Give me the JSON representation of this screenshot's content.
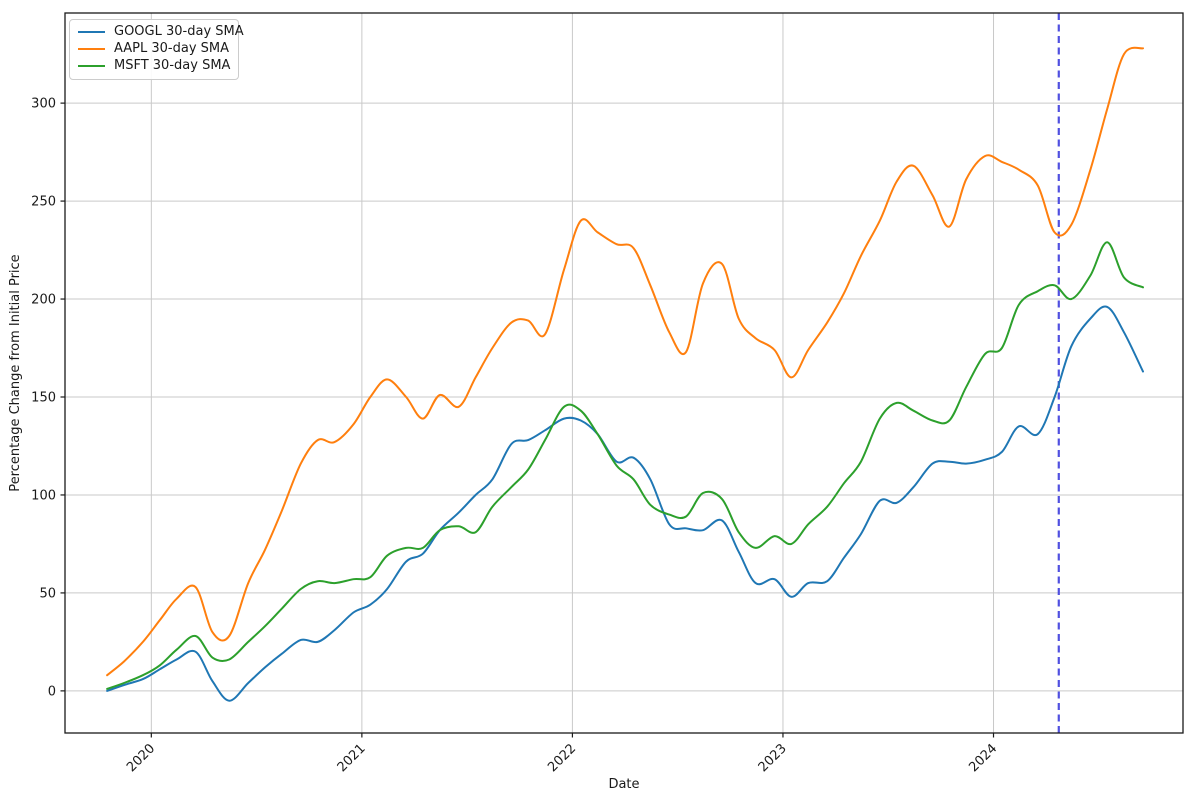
{
  "figure": {
    "background": "#ffffff",
    "axes": {
      "xlabel": "Date",
      "ylabel": "Percentage Change from Initial Price",
      "spine_color": "#1a1a1a",
      "grid_color": "#c9c9c9",
      "tick_label_color": "#1a1a1a"
    }
  },
  "legend": {
    "position": "upper left"
  },
  "chart_data": {
    "type": "line",
    "title": "",
    "xlabel": "Date",
    "ylabel": "Percentage Change from Initial Price",
    "grid": true,
    "legend_position": "upper left",
    "x_ticks": [
      2020,
      2021,
      2022,
      2023,
      2024
    ],
    "x_tick_labels": [
      "2020",
      "2021",
      "2022",
      "2023",
      "2024"
    ],
    "y_ticks": [
      0,
      50,
      100,
      150,
      200,
      250,
      300
    ],
    "xlim": [
      2019.59,
      2024.9
    ],
    "ylim": [
      -21.5,
      346
    ],
    "x": [
      2019.79,
      2019.87,
      2019.96,
      2020.04,
      2020.12,
      2020.21,
      2020.29,
      2020.37,
      2020.46,
      2020.54,
      2020.62,
      2020.71,
      2020.79,
      2020.87,
      2020.96,
      2021.04,
      2021.12,
      2021.21,
      2021.29,
      2021.37,
      2021.46,
      2021.54,
      2021.62,
      2021.71,
      2021.79,
      2021.87,
      2021.96,
      2022.04,
      2022.12,
      2022.21,
      2022.29,
      2022.37,
      2022.46,
      2022.54,
      2022.62,
      2022.71,
      2022.79,
      2022.87,
      2022.96,
      2023.04,
      2023.12,
      2023.21,
      2023.29,
      2023.37,
      2023.46,
      2023.54,
      2023.62,
      2023.71,
      2023.79,
      2023.87,
      2023.96,
      2024.04,
      2024.12,
      2024.21,
      2024.29,
      2024.37,
      2024.46,
      2024.54,
      2024.62,
      2024.71
    ],
    "series": [
      {
        "name": "GOOGL 30-day SMA",
        "color": "#1f77b4",
        "values": [
          0,
          3,
          6,
          11,
          16,
          20,
          5,
          -5,
          4,
          12,
          19,
          26,
          25,
          31,
          40,
          44,
          52,
          66,
          70,
          82,
          91,
          100,
          108,
          126,
          128,
          133,
          139,
          138,
          131,
          117,
          119,
          108,
          85,
          83,
          82,
          87,
          71,
          55,
          57,
          48,
          55,
          56,
          68,
          80,
          97,
          96,
          104,
          116,
          117,
          116,
          118,
          122,
          135,
          131,
          150,
          176,
          190,
          196,
          183,
          163
        ]
      },
      {
        "name": "AAPL 30-day SMA",
        "color": "#ff7f0e",
        "values": [
          8,
          15,
          25,
          36,
          47,
          53,
          30,
          28,
          55,
          72,
          92,
          116,
          128,
          127,
          136,
          150,
          159,
          150,
          139,
          151,
          145,
          160,
          175,
          188,
          189,
          182,
          215,
          240,
          234,
          228,
          226,
          207,
          183,
          173,
          208,
          218,
          190,
          180,
          174,
          160,
          174,
          188,
          203,
          222,
          240,
          260,
          268,
          253,
          237,
          261,
          273,
          270,
          266,
          258,
          234,
          238,
          266,
          297,
          325,
          328
        ]
      },
      {
        "name": "MSFT 30-day SMA",
        "color": "#2ca02c",
        "values": [
          1,
          4,
          8,
          13,
          21,
          28,
          17,
          16,
          25,
          33,
          42,
          52,
          56,
          55,
          57,
          58,
          69,
          73,
          73,
          82,
          84,
          81,
          94,
          104,
          113,
          128,
          145,
          143,
          131,
          115,
          108,
          95,
          90,
          89,
          101,
          98,
          81,
          73,
          79,
          75,
          85,
          94,
          106,
          117,
          139,
          147,
          143,
          138,
          138,
          155,
          172,
          175,
          197,
          204,
          207,
          200,
          212,
          229,
          211,
          206
        ]
      }
    ],
    "vline": {
      "x": 2024.31,
      "color": "#5050e0",
      "style": "dashed",
      "linewidth": 2.2
    }
  }
}
